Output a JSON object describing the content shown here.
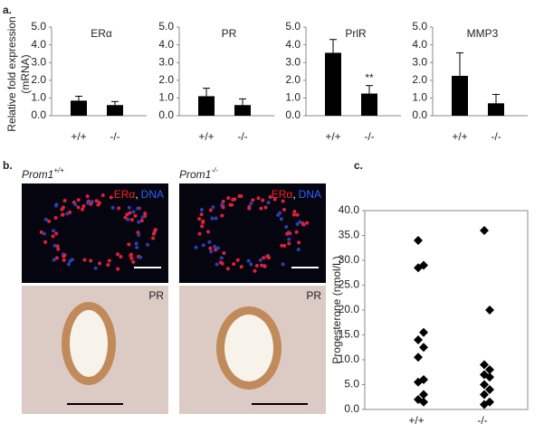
{
  "panel_labels": [
    "a.",
    "b.",
    "c."
  ],
  "chart_data": [
    {
      "type": "bar",
      "title": "ERα",
      "ylabel": [
        "Relative fold expression",
        "(mRNA)"
      ],
      "categories": [
        "+/+",
        "-/-"
      ],
      "values": [
        0.85,
        0.6
      ],
      "errors": [
        0.25,
        0.2
      ],
      "color": "#000000",
      "ylim": [
        0,
        5
      ],
      "yticks": [
        {
          "value": 0,
          "label": "0.0"
        },
        {
          "value": 1,
          "label": "1.0"
        },
        {
          "value": 2,
          "label": "2.0"
        },
        {
          "value": 3,
          "label": "3.0"
        },
        {
          "value": 4,
          "label": "4.0"
        },
        {
          "value": 5,
          "label": "5.0"
        }
      ]
    },
    {
      "type": "bar",
      "title": "PR",
      "categories": [
        "+/+",
        "-/-"
      ],
      "values": [
        1.1,
        0.6
      ],
      "errors": [
        0.45,
        0.35
      ],
      "color": "#000000",
      "ylim": [
        0,
        5
      ],
      "yticks": [
        {
          "value": 0,
          "label": "0.0"
        },
        {
          "value": 1,
          "label": "1.0"
        },
        {
          "value": 2,
          "label": "2.0"
        },
        {
          "value": 3,
          "label": "3.0"
        },
        {
          "value": 4,
          "label": "4.0"
        },
        {
          "value": 5,
          "label": "5.0"
        }
      ]
    },
    {
      "type": "bar",
      "title": "PrlR",
      "categories": [
        "+/+",
        "-/-"
      ],
      "values": [
        3.55,
        1.25
      ],
      "errors": [
        0.75,
        0.45
      ],
      "value_annotations": [
        null,
        "**"
      ],
      "color": "#000000",
      "ylim": [
        0,
        5
      ],
      "yticks": [
        {
          "value": 0,
          "label": "0.0"
        },
        {
          "value": 1,
          "label": "1.0"
        },
        {
          "value": 2,
          "label": "2.0"
        },
        {
          "value": 3,
          "label": "3.0"
        },
        {
          "value": 4,
          "label": "4.0"
        },
        {
          "value": 5,
          "label": "5.0"
        }
      ]
    },
    {
      "type": "bar",
      "title": "MMP3",
      "categories": [
        "+/+",
        "-/-"
      ],
      "values": [
        2.25,
        0.7
      ],
      "errors": [
        1.3,
        0.5
      ],
      "color": "#000000",
      "ylim": [
        0,
        5
      ],
      "yticks": [
        {
          "value": 0,
          "label": "0.0"
        },
        {
          "value": 1,
          "label": "1.0"
        },
        {
          "value": 2,
          "label": "2.0"
        },
        {
          "value": 3,
          "label": "3.0"
        },
        {
          "value": 4,
          "label": "4.0"
        },
        {
          "value": 5,
          "label": "5.0"
        }
      ]
    },
    {
      "type": "strip",
      "ylabel": "Progesterone (nmol/L)",
      "categories": [
        "+/+",
        "-/-"
      ],
      "color": "#000000",
      "values": [
        [
          34,
          29,
          28.5,
          15.5,
          14,
          12.5,
          10.5,
          6,
          5.5,
          3,
          2,
          1.5
        ],
        [
          36,
          20,
          9,
          8,
          7,
          6.5,
          5,
          4,
          3,
          1.5,
          1
        ]
      ],
      "ylim": [
        0,
        40
      ],
      "yticks": [
        {
          "value": 0,
          "label": "0.0"
        },
        {
          "value": 5,
          "label": "5.0"
        },
        {
          "value": 10,
          "label": "10.0"
        },
        {
          "value": 15,
          "label": "15.0"
        },
        {
          "value": 20,
          "label": "20.0"
        },
        {
          "value": 25,
          "label": "25.0"
        },
        {
          "value": 30,
          "label": "30.0"
        },
        {
          "value": 35,
          "label": "35.0"
        },
        {
          "value": 40,
          "label": "40.0"
        }
      ]
    }
  ],
  "images": [
    {
      "title": "Prom1",
      "superscript": "+/+",
      "fluor": [
        "ERα",
        ",",
        "DNA"
      ],
      "ihc": "PR"
    },
    {
      "title": "Prom1",
      "superscript": "-/-",
      "fluor": [
        "ERα",
        ",",
        "DNA"
      ],
      "ihc": "PR"
    }
  ]
}
